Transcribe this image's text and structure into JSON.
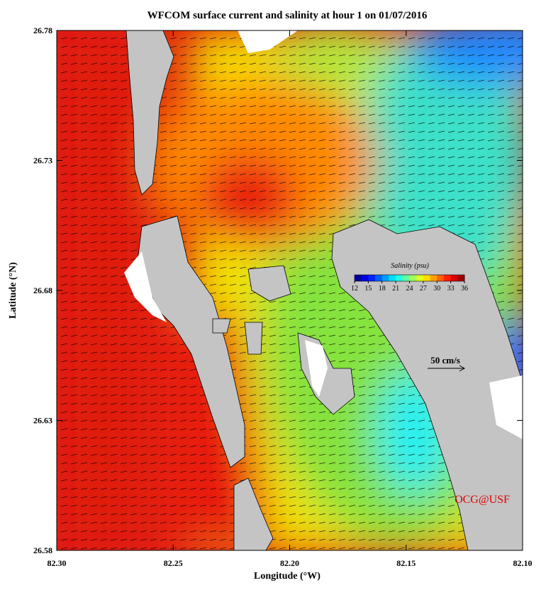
{
  "chart_data": {
    "type": "map",
    "title": "WFCOM surface current and salinity at hour 1 on 01/07/2016",
    "x_label": "Longitude (°W)",
    "y_label": "Latitude (°N)",
    "xlim": [
      82.3,
      82.1
    ],
    "xticks": [
      {
        "value": 82.3,
        "label": "82.30"
      },
      82.25,
      {
        "value": 82.2,
        "label": "82.20"
      },
      82.15,
      {
        "value": 82.1,
        "label": "82.10"
      }
    ],
    "ylim": [
      26.58,
      26.78
    ],
    "yticks": [
      26.58,
      26.63,
      26.68,
      26.73,
      26.78
    ],
    "colorbar": {
      "label": "Salinity (psu)",
      "lim": [
        12,
        36
      ],
      "ticks": [
        12,
        15,
        18,
        21,
        24,
        27,
        30,
        33,
        36
      ]
    },
    "scale_arrow": "50 cm/s",
    "credit": "OCG@USF"
  }
}
